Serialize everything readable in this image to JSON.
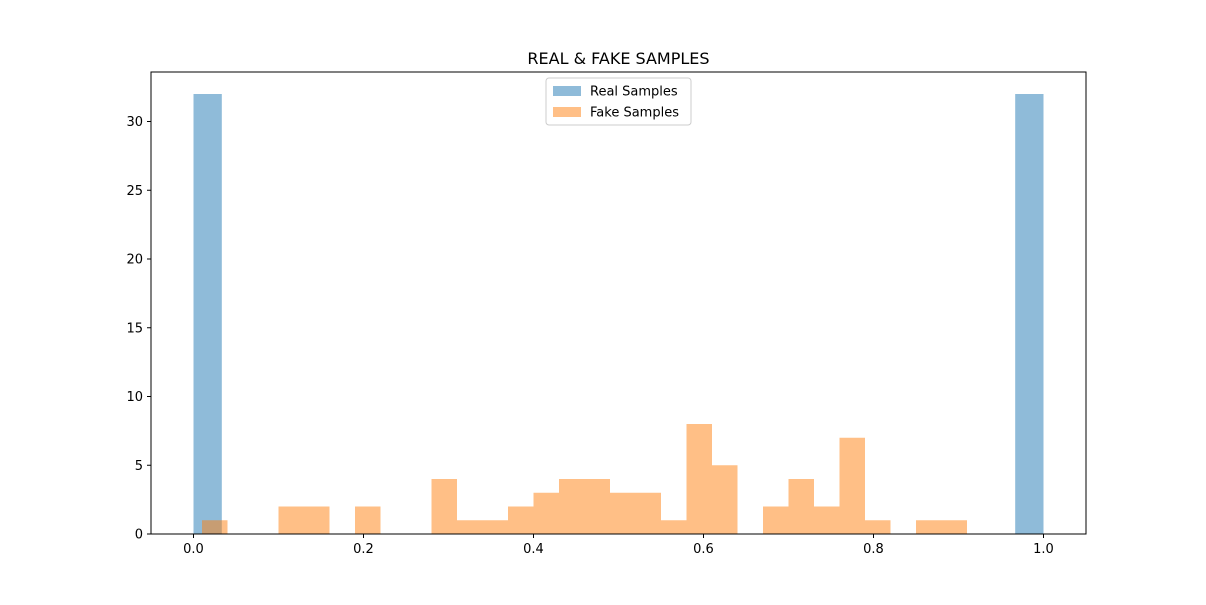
{
  "chart_data": {
    "type": "bar",
    "title": "REAL & FAKE SAMPLES",
    "xlabel": "",
    "ylabel": "",
    "xlim": [
      -0.05,
      1.05
    ],
    "ylim": [
      0,
      33.6
    ],
    "xticks": [
      0.0,
      0.2,
      0.4,
      0.6,
      0.8,
      1.0
    ],
    "xtick_labels": [
      "0.0",
      "0.2",
      "0.4",
      "0.6",
      "0.8",
      "1.0"
    ],
    "yticks": [
      0,
      5,
      10,
      15,
      20,
      25,
      30
    ],
    "ytick_labels": [
      "0",
      "5",
      "10",
      "15",
      "20",
      "25",
      "30"
    ],
    "grid": false,
    "legend_position": "upper center",
    "series": [
      {
        "name": "Real Samples",
        "color": "#1f77b4",
        "opacity": 0.5,
        "bins": [
          {
            "x0": 0.0,
            "x1": 0.0333,
            "count": 32
          },
          {
            "x0": 0.9667,
            "x1": 1.0,
            "count": 32
          }
        ]
      },
      {
        "name": "Fake Samples",
        "color": "#ff7f0e",
        "opacity": 0.5,
        "bins": [
          {
            "x0": 0.01,
            "x1": 0.04,
            "count": 1
          },
          {
            "x0": 0.1,
            "x1": 0.13,
            "count": 2
          },
          {
            "x0": 0.13,
            "x1": 0.16,
            "count": 2
          },
          {
            "x0": 0.19,
            "x1": 0.22,
            "count": 2
          },
          {
            "x0": 0.28,
            "x1": 0.31,
            "count": 4
          },
          {
            "x0": 0.31,
            "x1": 0.34,
            "count": 1
          },
          {
            "x0": 0.34,
            "x1": 0.37,
            "count": 1
          },
          {
            "x0": 0.37,
            "x1": 0.4,
            "count": 2
          },
          {
            "x0": 0.4,
            "x1": 0.43,
            "count": 3
          },
          {
            "x0": 0.43,
            "x1": 0.46,
            "count": 4
          },
          {
            "x0": 0.46,
            "x1": 0.49,
            "count": 4
          },
          {
            "x0": 0.49,
            "x1": 0.52,
            "count": 3
          },
          {
            "x0": 0.52,
            "x1": 0.55,
            "count": 3
          },
          {
            "x0": 0.55,
            "x1": 0.58,
            "count": 1
          },
          {
            "x0": 0.58,
            "x1": 0.61,
            "count": 8
          },
          {
            "x0": 0.61,
            "x1": 0.64,
            "count": 5
          },
          {
            "x0": 0.67,
            "x1": 0.7,
            "count": 2
          },
          {
            "x0": 0.7,
            "x1": 0.73,
            "count": 4
          },
          {
            "x0": 0.73,
            "x1": 0.76,
            "count": 2
          },
          {
            "x0": 0.76,
            "x1": 0.79,
            "count": 7
          },
          {
            "x0": 0.79,
            "x1": 0.82,
            "count": 1
          },
          {
            "x0": 0.85,
            "x1": 0.88,
            "count": 1
          },
          {
            "x0": 0.88,
            "x1": 0.91,
            "count": 1
          }
        ]
      }
    ]
  }
}
